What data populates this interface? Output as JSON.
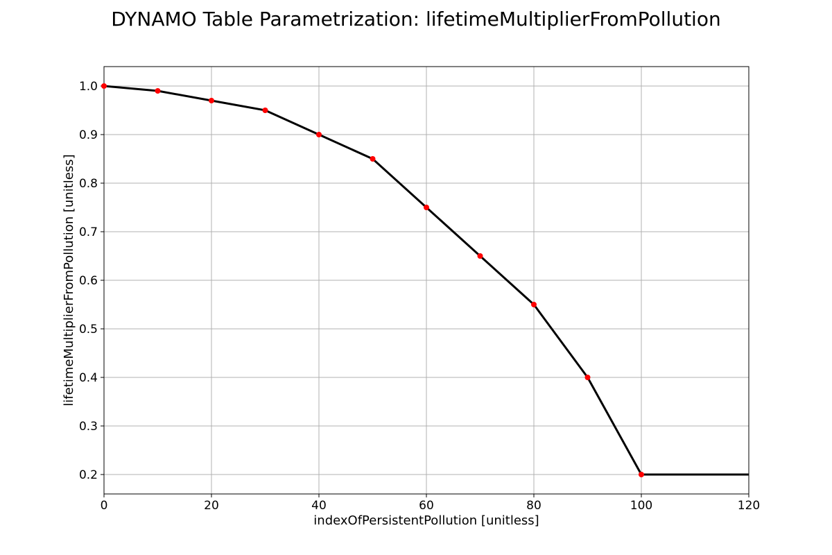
{
  "chart_data": {
    "type": "line",
    "title": "DYNAMO Table Parametrization: lifetimeMultiplierFromPollution",
    "xlabel": "indexOfPersistentPollution [unitless]",
    "ylabel": "lifetimeMultiplierFromPollution [unitless]",
    "xlim": [
      0,
      120
    ],
    "ylim": [
      0.16,
      1.04
    ],
    "x_ticks": [
      0,
      20,
      40,
      60,
      80,
      100,
      120
    ],
    "y_ticks": [
      0.2,
      0.3,
      0.4,
      0.5,
      0.6,
      0.7,
      0.8,
      0.9,
      1.0
    ],
    "x_tick_labels": [
      "0",
      "20",
      "40",
      "60",
      "80",
      "100",
      "120"
    ],
    "y_tick_labels": [
      "0.2",
      "0.3",
      "0.4",
      "0.5",
      "0.6",
      "0.7",
      "0.8",
      "0.9",
      "1.0"
    ],
    "grid": true,
    "line_color": "#000000",
    "marker_color": "#ff0000",
    "line": {
      "x": [
        0,
        10,
        20,
        30,
        40,
        50,
        60,
        70,
        80,
        90,
        100,
        120
      ],
      "y": [
        1.0,
        0.99,
        0.97,
        0.95,
        0.9,
        0.85,
        0.75,
        0.65,
        0.55,
        0.4,
        0.2,
        0.2
      ]
    },
    "points": {
      "x": [
        0,
        10,
        20,
        30,
        40,
        50,
        60,
        70,
        80,
        90,
        100
      ],
      "y": [
        1.0,
        0.99,
        0.97,
        0.95,
        0.9,
        0.85,
        0.75,
        0.65,
        0.55,
        0.4,
        0.2
      ]
    }
  }
}
